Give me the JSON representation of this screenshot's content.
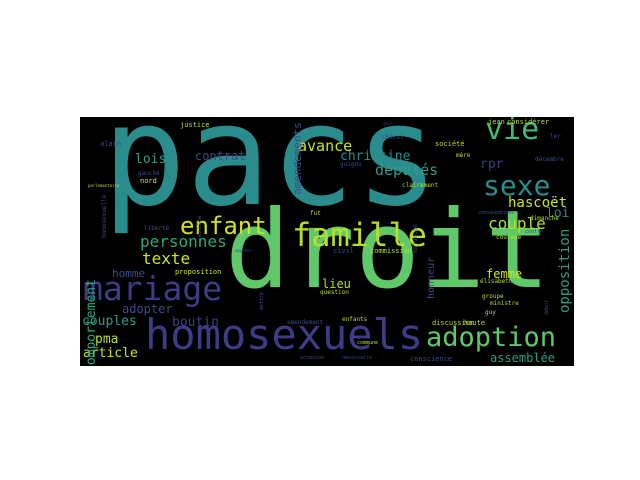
{
  "wordcloud": {
    "background": "#000000",
    "words": [
      {
        "text": "pacs",
        "color": "#2a8c8c"
      },
      {
        "text": "droit",
        "color": "#5fc96a"
      },
      {
        "text": "homosexuels",
        "color": "#3f3b87"
      },
      {
        "text": "famille",
        "color": "#b6de2b"
      },
      {
        "text": "mariage",
        "color": "#3f3b87"
      },
      {
        "text": "enfant",
        "color": "#d2e21b"
      },
      {
        "text": "adoption",
        "color": "#5fc96a"
      },
      {
        "text": "sexe",
        "color": "#2a8c8c"
      },
      {
        "text": "vie",
        "color": "#3fbc73"
      },
      {
        "text": "personnes",
        "color": "#26a881"
      },
      {
        "text": "texte",
        "color": "#d2e21b"
      },
      {
        "text": "couple",
        "color": "#b6de2b"
      },
      {
        "text": "députés",
        "color": "#2f9c88"
      },
      {
        "text": "christine",
        "color": "#2a8c8c"
      },
      {
        "text": "avance",
        "color": "#d2e21b"
      },
      {
        "text": "lois",
        "color": "#2f9c88"
      },
      {
        "text": "rpr",
        "color": "#3f3b87"
      },
      {
        "text": "hascoët",
        "color": "#d2e21b"
      },
      {
        "text": "loi",
        "color": "#2a8c8c"
      },
      {
        "text": "boutin",
        "color": "#3f3b87"
      },
      {
        "text": "couples",
        "color": "#2f9c88"
      },
      {
        "text": "article",
        "color": "#d2e21b"
      },
      {
        "text": "pma",
        "color": "#b6de2b"
      },
      {
        "text": "femme",
        "color": "#d2e21b"
      },
      {
        "text": "lieu",
        "color": "#b6de2b"
      },
      {
        "text": "assemblée",
        "color": "#2f9c88"
      },
      {
        "text": "opposition",
        "color": "#2f9c88"
      },
      {
        "text": "comportement",
        "color": "#26a881"
      },
      {
        "text": "amendements",
        "color": "#3e4a89"
      },
      {
        "text": "contrat",
        "color": "#3e4a89"
      },
      {
        "text": "homme",
        "color": "#3e4a89"
      },
      {
        "text": "adopter",
        "color": "#3e4a89"
      },
      {
        "text": "honneur",
        "color": "#3e4a89"
      },
      {
        "text": "proposition",
        "color": "#d2e21b"
      },
      {
        "text": "justice",
        "color": "#b6de2b"
      },
      {
        "text": "alain",
        "color": "#3e4a89"
      },
      {
        "text": "gauche",
        "color": "#3e4a89"
      },
      {
        "text": "nord",
        "color": "#d2e21b"
      },
      {
        "text": "homosexuelle",
        "color": "#3e4a89"
      },
      {
        "text": "enfants",
        "color": "#b6de2b"
      },
      {
        "text": "société",
        "color": "#b6de2b"
      },
      {
        "text": "mère",
        "color": "#b6de2b"
      },
      {
        "text": "choisi",
        "color": "#3e4a89"
      },
      {
        "text": "jean",
        "color": "#b6de2b"
      },
      {
        "text": "considérer",
        "color": "#b6de2b"
      },
      {
        "text": "décembre",
        "color": "#3e4a89"
      },
      {
        "text": "dimanche",
        "color": "#b6de2b"
      },
      {
        "text": "contre",
        "color": "#3e4a89"
      },
      {
        "text": "guy",
        "color": "#b6de2b"
      },
      {
        "text": "élisabeth",
        "color": "#b6de2b"
      },
      {
        "text": "ministre",
        "color": "#b6de2b"
      },
      {
        "text": "groupe",
        "color": "#b6de2b"
      },
      {
        "text": "courage",
        "color": "#b6de2b"
      },
      {
        "text": "guigou",
        "color": "#3e4a89"
      },
      {
        "text": "clairement",
        "color": "#b6de2b"
      },
      {
        "text": "commission",
        "color": "#b6de2b"
      },
      {
        "text": "civil",
        "color": "#3e4a89"
      },
      {
        "text": "question",
        "color": "#b6de2b"
      },
      {
        "text": "amendement",
        "color": "#3e4a89"
      },
      {
        "text": "occasion",
        "color": "#3e4a89"
      },
      {
        "text": "nécessaire",
        "color": "#3e4a89"
      },
      {
        "text": "discussion",
        "color": "#b6de2b"
      },
      {
        "text": "haute",
        "color": "#b6de2b"
      },
      {
        "text": "conscience",
        "color": "#3e4a89"
      },
      {
        "text": "fut",
        "color": "#b6de2b"
      },
      {
        "text": "liberté",
        "color": "#3e4a89"
      },
      {
        "text": "existe",
        "color": "#3e4a89"
      },
      {
        "text": "majorité",
        "color": "#3e4a89"
      },
      {
        "text": "début",
        "color": "#3e4a89"
      },
      {
        "text": "commune",
        "color": "#b6de2b"
      },
      {
        "text": "conséquences",
        "color": "#3e4a89"
      },
      {
        "text": "soir",
        "color": "#3e4a89"
      },
      {
        "text": "mettre",
        "color": "#3e4a89"
      },
      {
        "text": "opposer",
        "color": "#3e4a89"
      },
      {
        "text": "ler",
        "color": "#3e4a89"
      },
      {
        "text": "parlementaire",
        "color": "#b6de2b"
      }
    ]
  }
}
